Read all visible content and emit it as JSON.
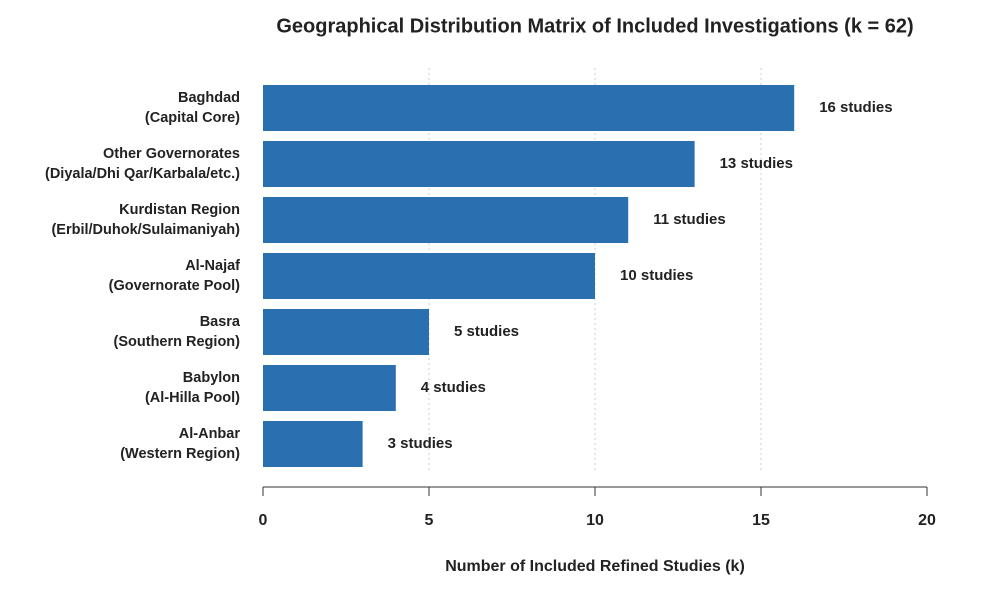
{
  "chart_data": {
    "type": "barh",
    "title": "Geographical Distribution Matrix of Included Investigations (k = 62)",
    "x_label": "Number of Included Refined Studies (k)",
    "categories": [
      [
        "Baghdad",
        "(Capital Core)"
      ],
      [
        "Other Governorates",
        "(Diyala/Dhi Qar/Karbala/etc.)"
      ],
      [
        "Kurdistan Region",
        "(Erbil/Duhok/Sulaimaniyah)"
      ],
      [
        "Al-Najaf",
        "(Governorate Pool)"
      ],
      [
        "Basra",
        "(Southern Region)"
      ],
      [
        "Babylon",
        "(Al-Hilla Pool)"
      ],
      [
        "Al-Anbar",
        "(Western Region)"
      ]
    ],
    "values": [
      16,
      13,
      11,
      10,
      5,
      4,
      3
    ],
    "value_labels": [
      "16 studies",
      "13 studies",
      "11 studies",
      "10 studies",
      "5 studies",
      "4 studies",
      "3 studies"
    ],
    "color": "#2a6fb0",
    "xlim": [
      0,
      20
    ],
    "xticks": [
      0,
      5,
      10,
      15,
      20
    ],
    "grid": true
  }
}
